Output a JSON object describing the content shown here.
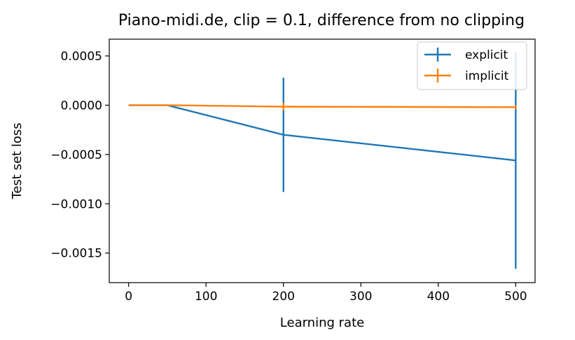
{
  "chart_data": {
    "type": "line",
    "title": "Piano-midi.de, clip = 0.1, difference from no clipping",
    "xlabel": "Learning rate",
    "ylabel": "Test set loss",
    "xlim": [
      -25,
      525
    ],
    "ylim": [
      -0.0018,
      0.00067
    ],
    "xticks": [
      0,
      100,
      200,
      300,
      400,
      500
    ],
    "xtick_labels": [
      "0",
      "100",
      "200",
      "300",
      "400",
      "500"
    ],
    "yticks": [
      0.0005,
      0.0,
      -0.0005,
      -0.001,
      -0.0015
    ],
    "ytick_labels": [
      "0.0005",
      "0.0000",
      "−0.0005",
      "−0.0010",
      "−0.0015"
    ],
    "legend_position": "top-right",
    "series": [
      {
        "name": "explicit",
        "color": "#1f77b4",
        "x": [
          0,
          50,
          200,
          500
        ],
        "y": [
          0.0,
          0.0,
          -0.0003,
          -0.00056
        ],
        "yerr": [
          0.0,
          0.0,
          0.00058,
          0.0011
        ]
      },
      {
        "name": "implicit",
        "color": "#ff7f0e",
        "x": [
          0,
          50,
          200,
          500
        ],
        "y": [
          0.0,
          0.0,
          -1.5e-05,
          -2e-05
        ],
        "yerr": [
          0.0,
          0.0,
          4e-05,
          2e-05
        ]
      }
    ]
  }
}
